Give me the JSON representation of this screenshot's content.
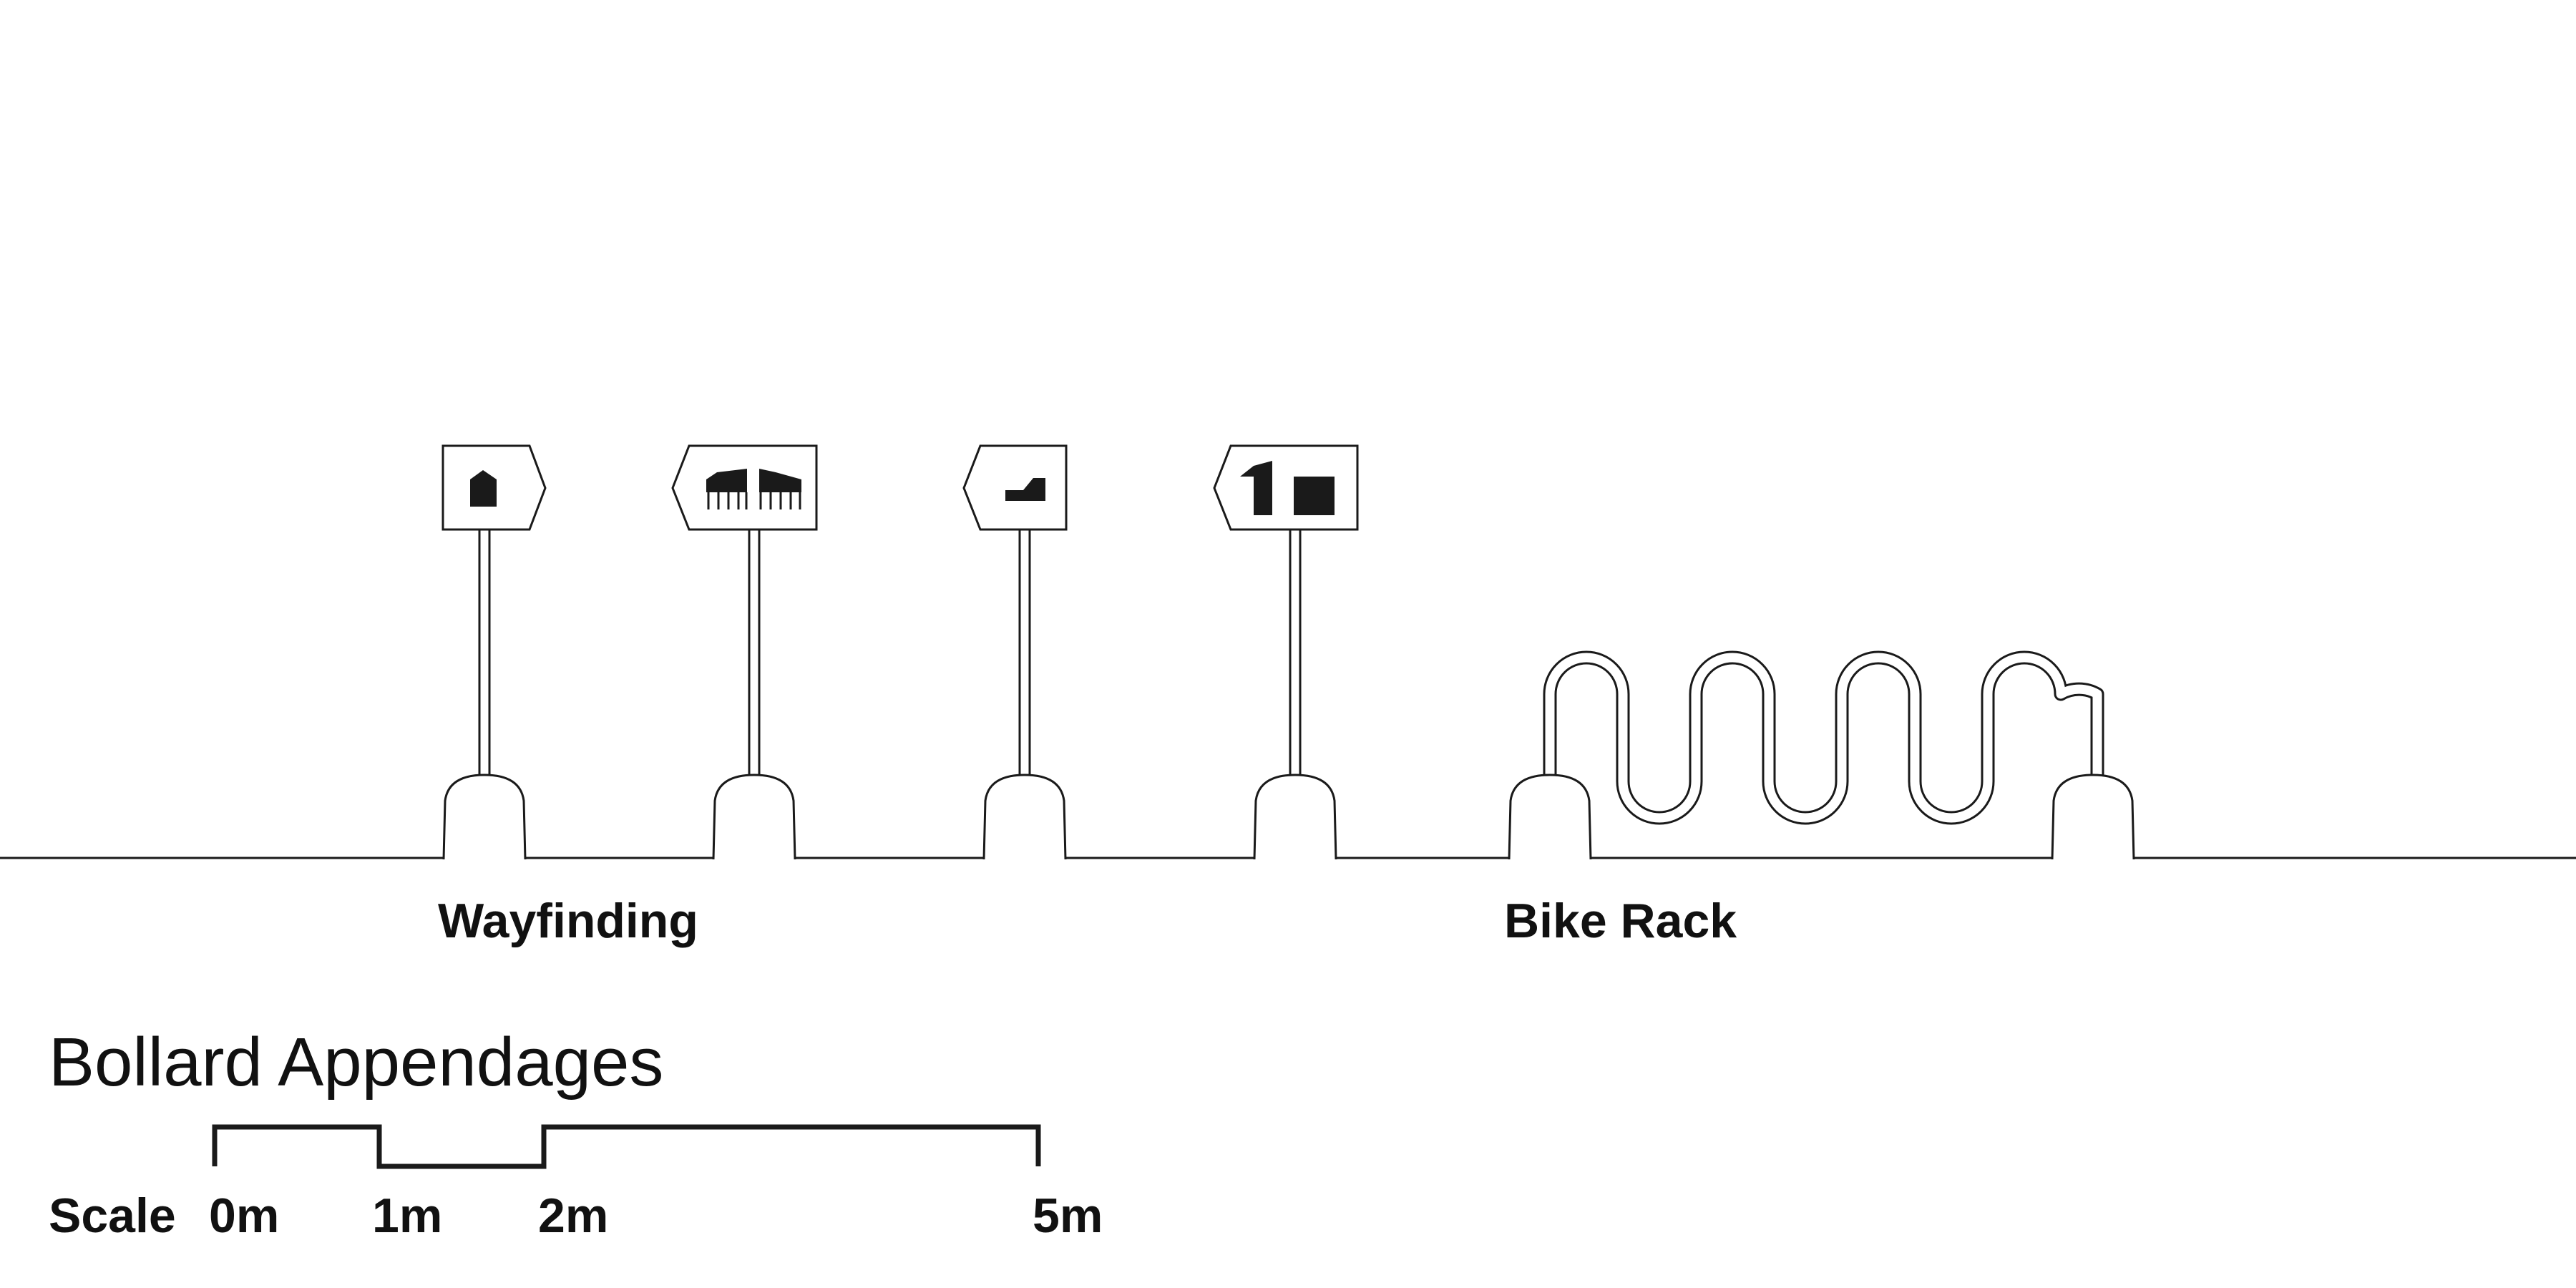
{
  "diagram": {
    "title": "Bollard Appendages",
    "groups": [
      {
        "label": "Wayfinding"
      },
      {
        "label": "Bike Rack"
      }
    ]
  },
  "scale": {
    "label": "Scale",
    "ticks": [
      "0m",
      "1m",
      "2m",
      "5m"
    ]
  },
  "icons": {
    "sign1": "house-icon",
    "sign2": "two-buildings-icon",
    "sign3": "building-icon",
    "sign4": "two-blocks-icon"
  },
  "colors": {
    "ink": "#1a1a1a",
    "background": "#ffffff"
  }
}
